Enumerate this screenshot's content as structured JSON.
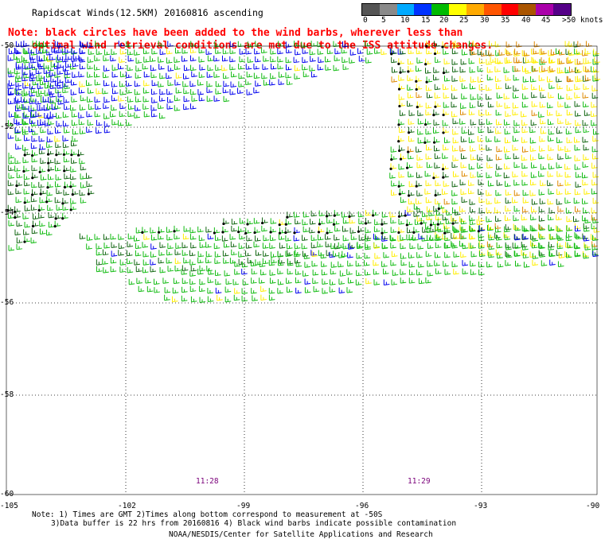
{
  "title": "Rapidscat Winds(12.5KM) 20160816 ascending",
  "note_line1": "Note: black circles have been added to the wind barbs, wherever less than",
  "note_line2": "optimal wind retrieval conditions are met due to the ISS attitude changes.",
  "legend": {
    "ticks": [
      "0",
      "5",
      "10",
      "15",
      "20",
      "25",
      "30",
      "35",
      "40",
      "45",
      ">50 knots"
    ],
    "colors": [
      "#555555",
      "#8a8a8a",
      "#00aaff",
      "#0033ff",
      "#00bb00",
      "#ffff00",
      "#ffaa00",
      "#ff5500",
      "#ff0000",
      "#aa5500",
      "#aa00aa",
      "#550088"
    ]
  },
  "axes": {
    "lat_labels": [
      "-50",
      "-52",
      "-54",
      "-56",
      "-58",
      "-60"
    ],
    "lon_labels": [
      "-105",
      "-102",
      "-99",
      "-96",
      "-93",
      "-90"
    ]
  },
  "times": [
    "11:28",
    "11:29"
  ],
  "footer": {
    "line1": "Note: 1) Times are GMT 2)Times along bottom correspond to measurement at -50S",
    "line2": "3)Data buffer is 22 hrs from 20160816 4) Black wind barbs indicate possible contamination",
    "credit": "NOAA/NESDIS/Center for Satellite Applications and Research"
  },
  "colors": {
    "note": "#ff0000",
    "time": "#7a007a",
    "barb_blue": "#0000ee",
    "barb_green": "#11bb11",
    "barb_dkgreen": "#116611",
    "barb_yellow": "#ffee00",
    "barb_orange": "#dd8800",
    "contam": "#000000"
  }
}
